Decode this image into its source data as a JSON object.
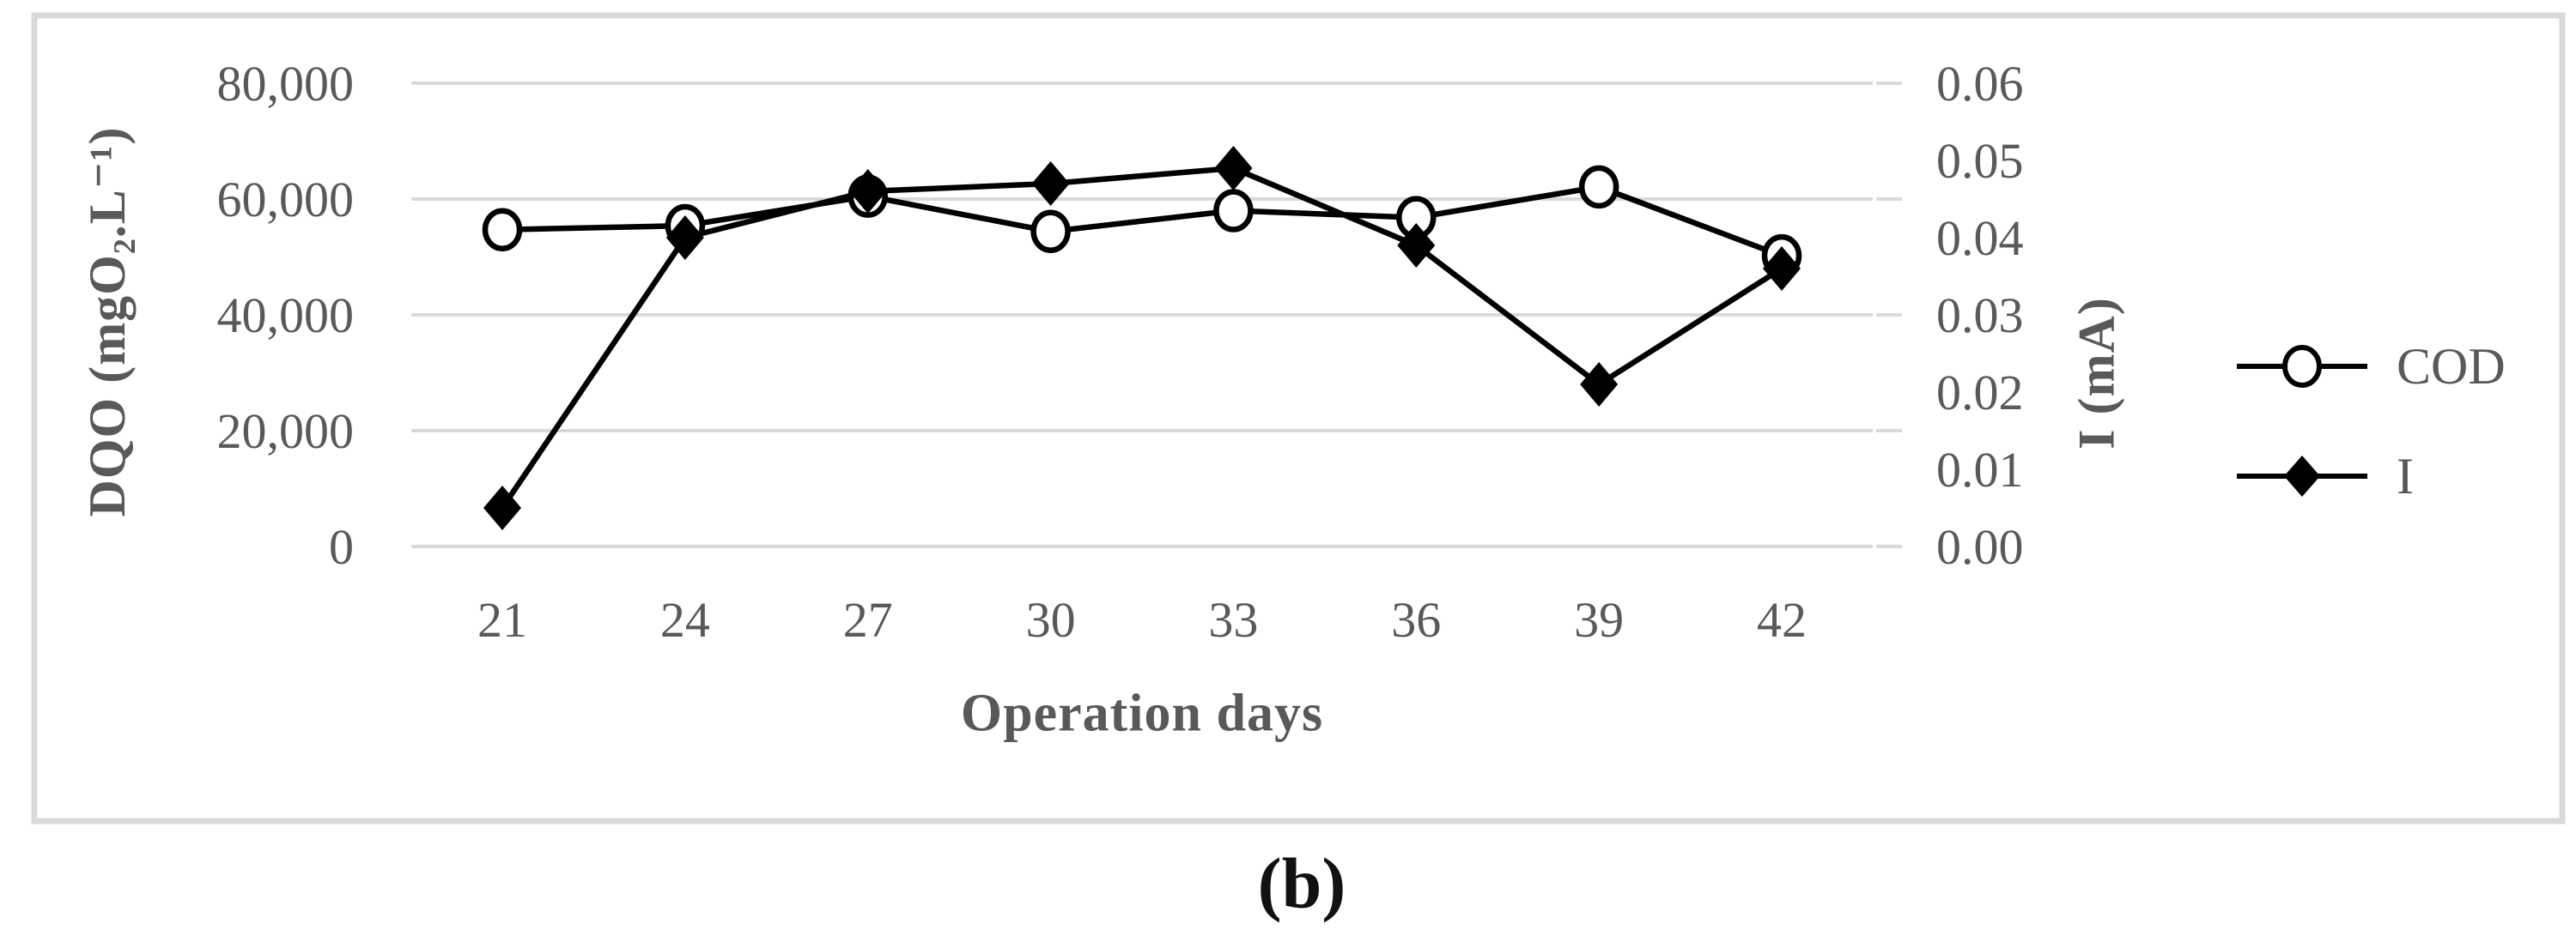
{
  "figure": {
    "caption": "(b)",
    "colors": {
      "series": "#000000",
      "gridline": "#d9d9d9",
      "border": "#d9d9d9",
      "text": "#595959",
      "background": "#ffffff"
    }
  },
  "chart_data": {
    "type": "line",
    "title": "",
    "xlabel": "Operation days",
    "ylabel_left": "DQO (mgO₂.L⁻¹)",
    "ylabel_right": "I (mA)",
    "x": [
      21,
      24,
      27,
      30,
      33,
      36,
      39,
      42
    ],
    "x_ticks": [
      "21",
      "24",
      "27",
      "30",
      "33",
      "36",
      "39",
      "42"
    ],
    "series": [
      {
        "name": "COD",
        "axis": "left",
        "marker": "open-circle",
        "values": [
          54700,
          55400,
          60500,
          54400,
          58000,
          56800,
          62100,
          50200
        ]
      },
      {
        "name": "I",
        "axis": "right",
        "marker": "filled-diamond",
        "values": [
          0.005,
          0.04,
          0.046,
          0.047,
          0.049,
          0.039,
          0.021,
          0.036
        ]
      }
    ],
    "left_axis": {
      "min": 0,
      "max": 80000,
      "ticks": [
        "0",
        "20,000",
        "40,000",
        "60,000",
        "80,000"
      ]
    },
    "right_axis": {
      "min": 0,
      "max": 0.06,
      "ticks": [
        "0.00",
        "0.01",
        "0.02",
        "0.03",
        "0.04",
        "0.05",
        "0.06"
      ]
    },
    "grid": "horizontal-only",
    "legend_position": "right-middle"
  }
}
